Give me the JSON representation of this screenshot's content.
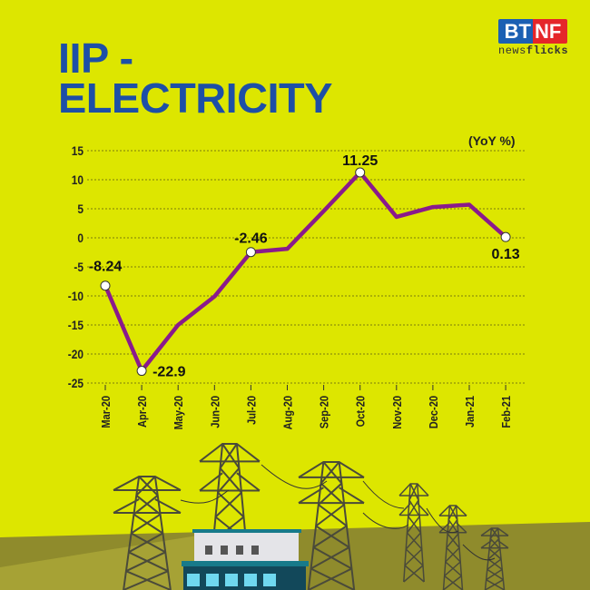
{
  "header": {
    "title_line1": "IIP -",
    "title_line2": "ELECTRICITY",
    "logo_left": "BT",
    "logo_right": "NF",
    "logo_sub_light": "news",
    "logo_sub_bold": "flicks"
  },
  "colors": {
    "background": "#dde600",
    "title": "#1d4fa6",
    "line": "#8a1a8c",
    "ground": "#8f8b2c"
  },
  "chart_data": {
    "type": "line",
    "title": "IIP - ELECTRICITY",
    "unit_label": "(YoY %)",
    "xlabel": "",
    "ylabel": "YoY %",
    "categories": [
      "Mar-20",
      "Apr-20",
      "May-20",
      "Jun-20",
      "Jul-20",
      "Aug-20",
      "Sep-20",
      "Oct-20",
      "Nov-20",
      "Dec-20",
      "Jan-21",
      "Feb-21"
    ],
    "series": [
      {
        "name": "IIP Electricity YoY %",
        "values": [
          -8.24,
          -22.9,
          -15.0,
          -10.1,
          -2.46,
          -1.9,
          4.6,
          11.25,
          3.6,
          5.3,
          5.7,
          0.13
        ]
      }
    ],
    "annotations": [
      {
        "category": "Mar-20",
        "label": "-8.24"
      },
      {
        "category": "Apr-20",
        "label": "-22.9"
      },
      {
        "category": "Jul-20",
        "label": "-2.46"
      },
      {
        "category": "Oct-20",
        "label": "11.25"
      },
      {
        "category": "Feb-21",
        "label": "0.13"
      }
    ],
    "yticks": [
      15,
      10,
      5,
      0,
      -5,
      -10,
      -15,
      -20,
      -25
    ],
    "ytick_labels": [
      "15",
      "10",
      "5",
      "0",
      "-5",
      "-10",
      "-15",
      "-20",
      "-25"
    ],
    "ylim": [
      -25,
      15
    ],
    "grid": true,
    "legend": "none"
  }
}
